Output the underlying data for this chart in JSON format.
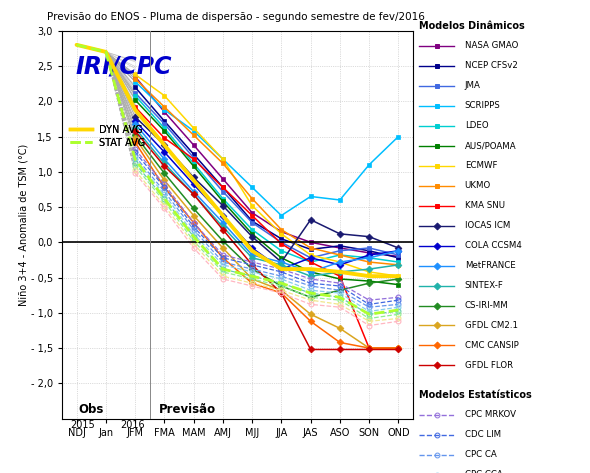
{
  "title": "Previsão do ENOS - Pluma de dispersão - segundo semestre de fev/2016",
  "xlabel_bottom": [
    "NDJ",
    "Jan",
    "JFM",
    "FMA",
    "MAM",
    "AMJ",
    "MJJ",
    "JJA",
    "JAS",
    "ASO",
    "SON",
    "OND"
  ],
  "ylabel": "Niño 3+4 - Anomalia de TSM (°C)",
  "ylim": [
    -2.5,
    3.0
  ],
  "yticks": [
    -2.0,
    -1.5,
    -1.0,
    -0.5,
    0.0,
    0.5,
    1.0,
    1.5,
    2.0,
    2.5,
    3.0
  ],
  "obs_label": "Obs",
  "prev_label": "Previsão",
  "logo_text": "IRI/CPC",
  "dyn_avg_label": "DYN AVG",
  "stat_avg_label": "STAT AVG",
  "background_color": "#FFFFFF",
  "grid_color": "#BBBBBB",
  "zero_line_color": "#000000",
  "dynamic_models": {
    "NASA GMAO": {
      "color": "#800080",
      "marker": "s",
      "data": [
        2.8,
        2.7,
        2.35,
        1.85,
        1.38,
        0.9,
        0.42,
        0.15,
        0.0,
        -0.08,
        -0.15,
        -0.2
      ]
    },
    "NCEP CFSv2": {
      "color": "#00008B",
      "marker": "s",
      "data": [
        2.8,
        2.7,
        2.2,
        1.72,
        1.25,
        0.78,
        0.3,
        0.05,
        -0.1,
        -0.05,
        -0.12,
        -0.22
      ]
    },
    "JMA": {
      "color": "#4169E1",
      "marker": "s",
      "data": [
        2.8,
        2.7,
        2.12,
        1.68,
        1.2,
        0.72,
        0.28,
        0.0,
        -0.22,
        -0.12,
        -0.08,
        -0.18
      ]
    },
    "SCRIPPS": {
      "color": "#00BFFF",
      "marker": "s",
      "data": [
        2.8,
        2.7,
        2.28,
        1.88,
        1.58,
        1.18,
        0.78,
        0.38,
        0.65,
        0.6,
        1.1,
        1.5
      ]
    },
    "LDEO": {
      "color": "#00CED1",
      "marker": "s",
      "data": [
        2.8,
        2.7,
        2.08,
        1.62,
        1.12,
        0.62,
        0.18,
        -0.12,
        -0.28,
        -0.18,
        -0.22,
        -0.28
      ]
    },
    "AUS/POAMA": {
      "color": "#008000",
      "marker": "s",
      "data": [
        2.8,
        2.7,
        2.02,
        1.58,
        1.08,
        0.58,
        0.12,
        -0.22,
        -0.42,
        -0.52,
        -0.55,
        -0.6
      ]
    },
    "ECMWF": {
      "color": "#FFD700",
      "marker": "s",
      "data": [
        2.8,
        2.7,
        2.38,
        2.08,
        1.62,
        1.18,
        0.52,
        0.12,
        -0.18,
        -0.28,
        -0.42,
        -0.48
      ]
    },
    "UKMO": {
      "color": "#FF8C00",
      "marker": "s",
      "data": [
        2.8,
        2.7,
        2.32,
        1.92,
        1.52,
        1.12,
        0.62,
        0.18,
        -0.08,
        -0.18,
        -0.28,
        -0.32
      ]
    },
    "KMA SNU": {
      "color": "#FF0000",
      "marker": "s",
      "data": [
        2.8,
        2.7,
        1.92,
        1.48,
        1.18,
        0.78,
        0.38,
        -0.02,
        -0.28,
        -0.48,
        -1.5,
        -1.5
      ]
    },
    "IOCAS ICM": {
      "color": "#191970",
      "marker": "D",
      "data": [
        2.8,
        2.7,
        1.78,
        1.38,
        0.92,
        0.52,
        0.08,
        -0.28,
        0.32,
        0.12,
        0.08,
        -0.08
      ]
    },
    "COLA CCSM4": {
      "color": "#0000CD",
      "marker": "D",
      "data": [
        2.8,
        2.7,
        1.72,
        1.28,
        0.82,
        0.38,
        -0.08,
        -0.38,
        -0.22,
        -0.32,
        -0.18,
        -0.12
      ]
    },
    "MetFRANCE": {
      "color": "#1E90FF",
      "marker": "D",
      "data": [
        2.8,
        2.7,
        1.68,
        1.18,
        0.72,
        0.28,
        -0.18,
        -0.28,
        -0.42,
        -0.28,
        -0.22,
        -0.12
      ]
    },
    "SINTEX-F": {
      "color": "#20B2AA",
      "marker": "D",
      "data": [
        2.8,
        2.7,
        1.62,
        1.12,
        0.68,
        0.22,
        -0.22,
        -0.32,
        -0.48,
        -0.42,
        -0.38,
        -0.32
      ]
    },
    "CS-IRI-MM": {
      "color": "#228B22",
      "marker": "D",
      "data": [
        2.8,
        2.7,
        1.52,
        0.98,
        0.48,
        0.02,
        -0.38,
        -0.62,
        -0.78,
        -0.68,
        -0.58,
        -0.52
      ]
    },
    "GFDL CM2.1": {
      "color": "#DAA520",
      "marker": "D",
      "data": [
        2.8,
        2.7,
        1.48,
        0.88,
        0.38,
        -0.08,
        -0.52,
        -0.68,
        -1.02,
        -1.22,
        -1.5,
        -1.5
      ]
    },
    "CMC CANSIP": {
      "color": "#FF6600",
      "marker": "D",
      "data": [
        2.8,
        2.7,
        1.42,
        0.78,
        0.28,
        -0.22,
        -0.58,
        -0.72,
        -1.12,
        -1.42,
        -1.5,
        -1.5
      ]
    },
    "GFDL FLOR": {
      "color": "#CC0000",
      "marker": "D",
      "data": [
        2.8,
        2.7,
        1.58,
        1.08,
        0.68,
        0.18,
        -0.32,
        -0.72,
        -1.52,
        -1.52,
        -1.52,
        -1.52
      ]
    }
  },
  "statistical_models": {
    "CPC MRKOV": {
      "color": "#9370DB",
      "data": [
        2.8,
        2.7,
        1.32,
        0.82,
        0.28,
        -0.18,
        -0.28,
        -0.38,
        -0.52,
        -0.58,
        -0.82,
        -0.78
      ]
    },
    "CDC LIM": {
      "color": "#4169E1",
      "data": [
        2.8,
        2.7,
        1.28,
        0.78,
        0.22,
        -0.22,
        -0.32,
        -0.42,
        -0.58,
        -0.62,
        -0.88,
        -0.82
      ]
    },
    "CPC CA": {
      "color": "#6495ED",
      "data": [
        2.8,
        2.7,
        1.22,
        0.72,
        0.18,
        -0.28,
        -0.38,
        -0.48,
        -0.62,
        -0.68,
        -0.92,
        -0.88
      ]
    },
    "CPC CCA": {
      "color": "#87CEEB",
      "data": [
        2.8,
        2.7,
        1.18,
        0.68,
        0.12,
        -0.32,
        -0.42,
        -0.52,
        -0.68,
        -0.72,
        -0.98,
        -0.92
      ]
    },
    "CSU CLIPR": {
      "color": "#66CDAA",
      "data": [
        2.8,
        2.7,
        1.12,
        0.62,
        0.08,
        -0.38,
        -0.48,
        -0.58,
        -0.72,
        -0.78,
        -1.02,
        -0.98
      ]
    },
    "UBC NNET": {
      "color": "#90EE90",
      "data": [
        2.8,
        2.7,
        1.08,
        0.58,
        0.02,
        -0.42,
        -0.52,
        -0.62,
        -0.78,
        -0.82,
        -1.08,
        -1.02
      ]
    },
    "FSU REGR": {
      "color": "#F0E68C",
      "data": [
        2.8,
        2.7,
        1.02,
        0.52,
        -0.02,
        -0.48,
        -0.58,
        -0.68,
        -0.82,
        -0.88,
        -1.12,
        -1.08
      ]
    },
    "UCLA-TCD": {
      "color": "#FFB6C1",
      "data": [
        2.8,
        2.7,
        0.98,
        0.48,
        -0.08,
        -0.52,
        -0.62,
        -0.72,
        -0.88,
        -0.92,
        -1.18,
        -1.12
      ]
    }
  },
  "dyn_avg": [
    2.8,
    2.7,
    1.88,
    1.38,
    0.88,
    0.38,
    -0.12,
    -0.38,
    -0.38,
    -0.42,
    -0.48,
    -0.48
  ],
  "stat_avg": [
    2.8,
    2.7,
    1.18,
    0.62,
    0.08,
    -0.38,
    -0.48,
    -0.58,
    -0.72,
    -0.78,
    -1.02,
    -0.96
  ]
}
